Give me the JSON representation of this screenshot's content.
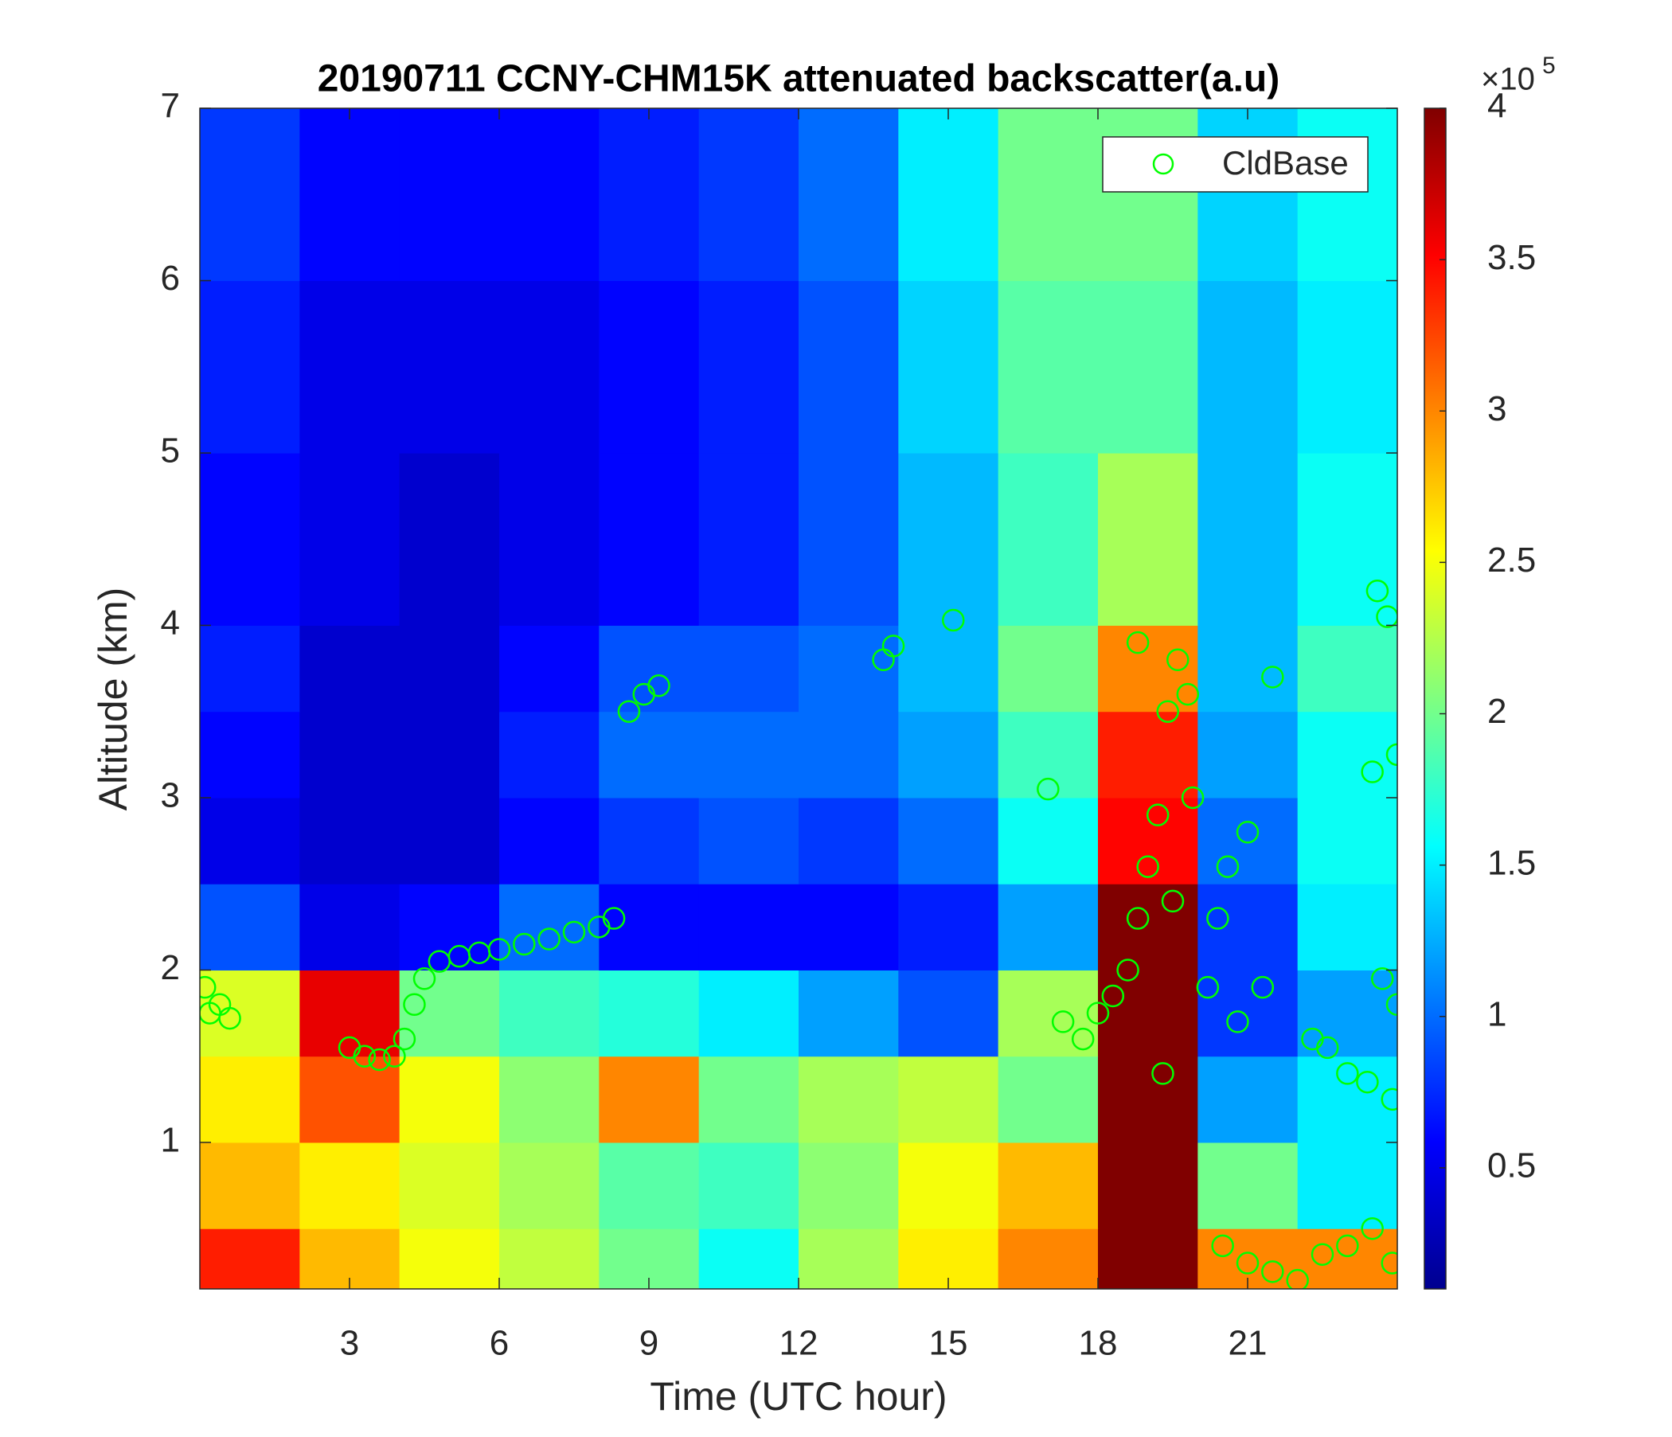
{
  "chart_data": {
    "type": "heatmap",
    "title": "20190711 CCNY-CHM15K attenuated backscatter(a.u)",
    "xlabel": "Time (UTC hour)",
    "ylabel": "Altitude (km)",
    "x_edges": [
      0,
      2,
      4,
      6,
      8,
      10,
      12,
      14,
      16,
      18,
      20,
      22,
      24
    ],
    "y_edges": [
      0.15,
      0.5,
      1,
      1.5,
      2,
      2.5,
      3,
      3.5,
      4,
      5,
      6,
      7
    ],
    "z": [
      [
        3.4,
        2.8,
        2.5,
        2.3,
        2.0,
        1.6,
        2.2,
        2.6,
        3.0,
        4.0,
        3.0,
        3.0
      ],
      [
        2.8,
        2.6,
        2.4,
        2.2,
        1.9,
        1.8,
        2.1,
        2.5,
        2.8,
        4.0,
        2.0,
        1.5
      ],
      [
        2.6,
        3.2,
        2.5,
        2.1,
        3.0,
        2.0,
        2.2,
        2.3,
        2.0,
        4.0,
        1.2,
        1.5
      ],
      [
        2.4,
        3.6,
        2.0,
        1.8,
        1.7,
        1.5,
        1.2,
        0.9,
        2.2,
        4.0,
        0.8,
        1.2
      ],
      [
        0.9,
        0.5,
        0.6,
        1.0,
        0.6,
        0.6,
        0.6,
        0.7,
        1.2,
        4.0,
        0.8,
        1.5
      ],
      [
        0.5,
        0.4,
        0.4,
        0.6,
        0.8,
        0.9,
        0.8,
        1.0,
        1.6,
        3.5,
        1.0,
        1.6
      ],
      [
        0.6,
        0.4,
        0.4,
        0.7,
        1.0,
        1.0,
        1.0,
        1.2,
        1.8,
        3.4,
        1.2,
        1.6
      ],
      [
        0.7,
        0.4,
        0.4,
        0.6,
        0.9,
        0.9,
        1.0,
        1.3,
        2.0,
        3.0,
        1.3,
        1.8
      ],
      [
        0.6,
        0.5,
        0.4,
        0.5,
        0.6,
        0.7,
        0.9,
        1.3,
        1.8,
        2.2,
        1.3,
        1.6
      ],
      [
        0.7,
        0.5,
        0.5,
        0.5,
        0.6,
        0.7,
        0.9,
        1.4,
        1.9,
        1.9,
        1.3,
        1.5
      ],
      [
        0.8,
        0.6,
        0.6,
        0.6,
        0.7,
        0.8,
        1.0,
        1.5,
        2.0,
        2.0,
        1.4,
        1.6
      ]
    ],
    "xlim": [
      0,
      24
    ],
    "ylim": [
      0.15,
      7
    ],
    "xticks": [
      3,
      6,
      9,
      12,
      15,
      18,
      21
    ],
    "yticks": [
      1,
      2,
      3,
      4,
      5,
      6,
      7
    ],
    "colormap": "jet",
    "clim": [
      0.1,
      4
    ],
    "cticks": [
      0.5,
      1,
      1.5,
      2,
      2.5,
      3,
      3.5,
      4
    ],
    "colorbar_scale": {
      "base": "×10",
      "exponent": "5"
    },
    "legend": "upper right",
    "overlay": {
      "type": "scatter",
      "series": [
        {
          "name": "CldBase",
          "color": "#00ff00",
          "x": [
            0.1,
            0.2,
            0.4,
            0.6,
            3.0,
            3.3,
            3.6,
            3.9,
            4.1,
            4.3,
            4.5,
            4.8,
            5.2,
            5.6,
            6.0,
            6.5,
            7.0,
            7.5,
            8.0,
            8.3,
            8.6,
            8.9,
            9.2,
            13.7,
            13.9,
            15.1,
            17.0,
            17.3,
            17.7,
            18.0,
            18.3,
            18.6,
            18.8,
            19.0,
            19.2,
            19.4,
            19.6,
            19.8,
            19.9,
            19.5,
            19.3,
            18.8,
            20.2,
            20.4,
            20.6,
            20.8,
            21.0,
            21.3,
            21.5,
            21.0,
            20.5,
            21.5,
            22.0,
            22.5,
            23.0,
            23.5,
            23.9,
            22.3,
            22.6,
            23.0,
            23.4,
            23.6,
            23.8,
            23.5,
            23.7,
            24.0,
            24.0,
            23.9
          ],
          "y": [
            1.9,
            1.75,
            1.8,
            1.72,
            1.55,
            1.5,
            1.48,
            1.5,
            1.6,
            1.8,
            1.95,
            2.05,
            2.08,
            2.1,
            2.12,
            2.15,
            2.18,
            2.22,
            2.25,
            2.3,
            3.5,
            3.6,
            3.65,
            3.8,
            3.88,
            4.03,
            3.05,
            1.7,
            1.6,
            1.75,
            1.85,
            2.0,
            2.3,
            2.6,
            2.9,
            3.5,
            3.8,
            3.6,
            3.0,
            2.4,
            1.4,
            3.9,
            1.9,
            2.3,
            2.6,
            1.7,
            2.8,
            1.9,
            3.7,
            0.3,
            0.4,
            0.25,
            0.2,
            0.35,
            0.4,
            0.5,
            0.3,
            1.6,
            1.55,
            1.4,
            1.35,
            4.2,
            4.05,
            3.15,
            1.95,
            3.25,
            1.8,
            1.25
          ]
        }
      ]
    }
  }
}
